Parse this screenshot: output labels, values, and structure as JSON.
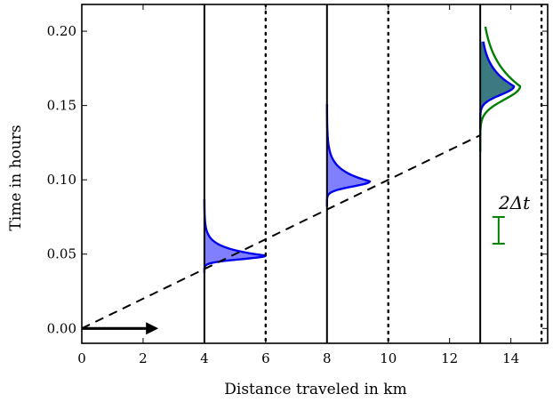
{
  "chart_data": {
    "type": "line",
    "xlabel": "Distance traveled in km",
    "ylabel": "Time in hours",
    "xlim": [
      0,
      15.2
    ],
    "ylim": [
      -0.01,
      0.218
    ],
    "xticks": [
      0,
      2,
      4,
      6,
      8,
      10,
      12,
      14
    ],
    "yticks": [
      0.0,
      0.05,
      0.1,
      0.15,
      0.2
    ],
    "xtick_labels": [
      "0",
      "2",
      "4",
      "6",
      "8",
      "10",
      "12",
      "14"
    ],
    "ytick_labels": [
      "0.00",
      "0.05",
      "0.10",
      "0.15",
      "0.20"
    ],
    "colors": {
      "blue": "#0000ee",
      "blue_fill": "#8080ff",
      "green": "#008000",
      "teal_fill": "#3a7a80",
      "black": "#000000"
    },
    "trajectory": {
      "style": "dashed",
      "x": [
        0,
        13
      ],
      "y": [
        0,
        0.13
      ]
    },
    "direction_arrow": {
      "x_start": 0,
      "x_end": 2.5,
      "y": 0
    },
    "solid_lines_x": [
      4,
      8,
      13
    ],
    "dotted_lines_x": [
      6,
      10,
      15
    ],
    "distributions": [
      {
        "x_base": 4,
        "peak_x": 6.0,
        "y_center": 0.049,
        "y_spread": 0.0045,
        "y_tail": 0.038,
        "color": "blue",
        "fill": "blue_fill"
      },
      {
        "x_base": 8,
        "peak_x": 9.4,
        "y_center": 0.099,
        "y_spread": 0.0065,
        "y_tail": 0.052,
        "color": "blue",
        "fill": "blue_fill"
      },
      {
        "x_base": 13,
        "peak_x": 14.1,
        "y_center": 0.163,
        "y_spread": 0.011,
        "y_tail": 0.03,
        "color": "blue",
        "fill": "teal_fill"
      },
      {
        "x_base": 13,
        "peak_x": 14.3,
        "y_center": 0.163,
        "y_spread": 0.017,
        "y_tail": 0.04,
        "color": "green",
        "fill": null
      }
    ],
    "annotation": {
      "label": "2Δt",
      "x": 13.6,
      "y_low": 0.057,
      "y_high": 0.075,
      "color": "green"
    }
  }
}
